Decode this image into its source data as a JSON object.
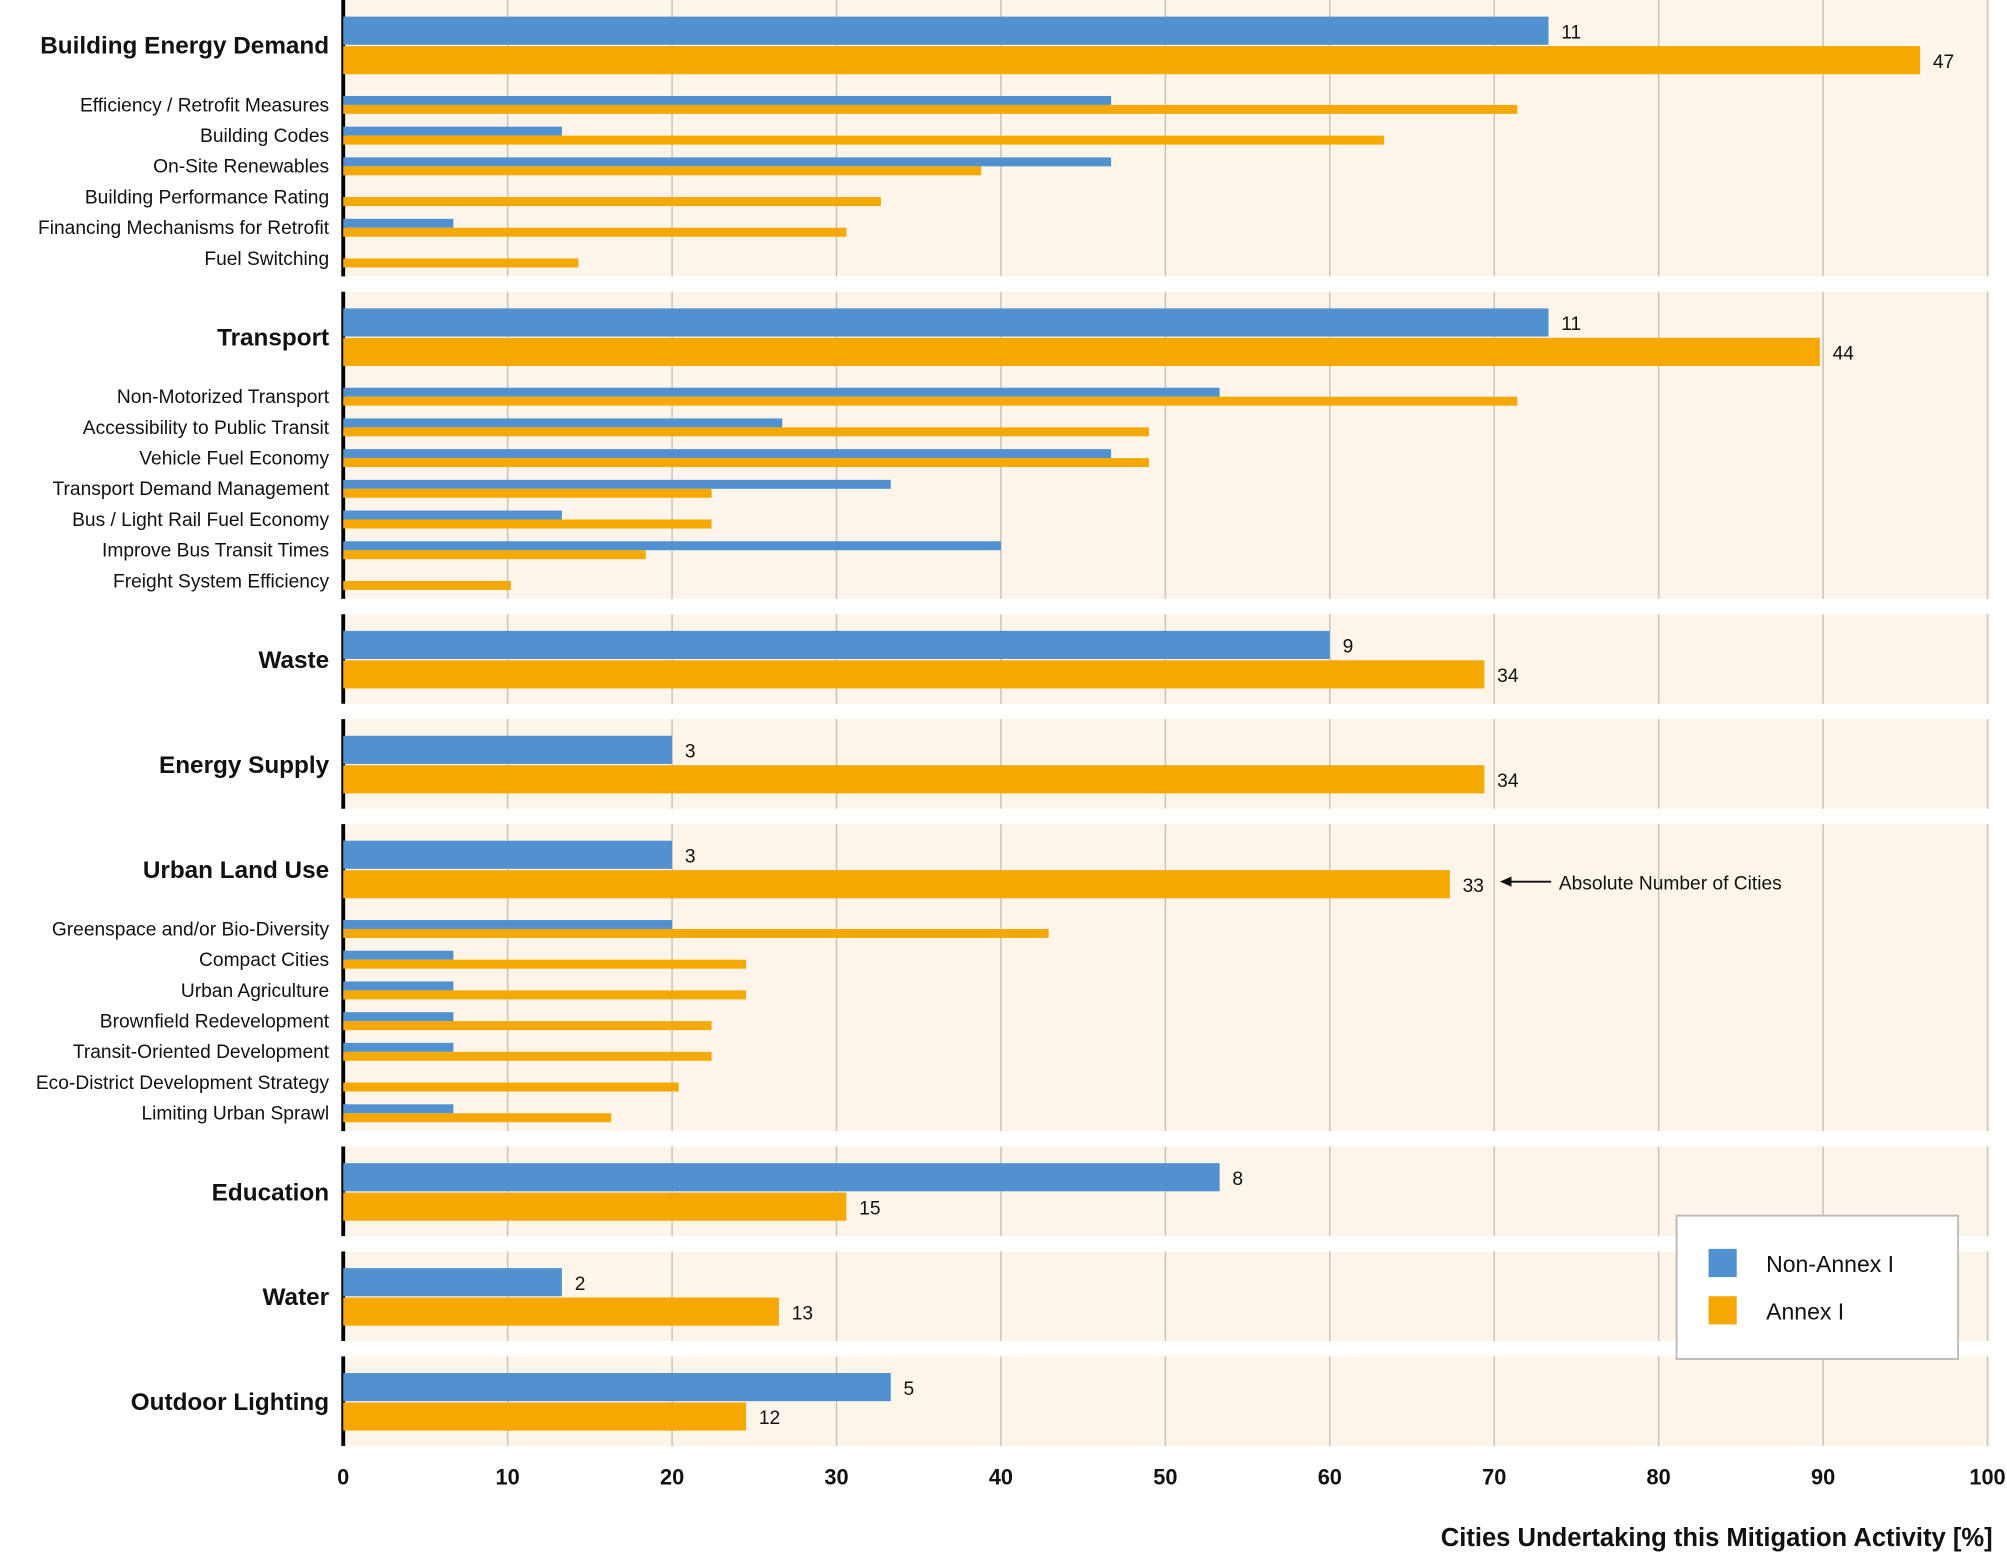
{
  "chart_data": {
    "type": "bar",
    "orientation": "horizontal",
    "xlabel": "Cities Undertaking this Mitigation Activity [%]",
    "xlim": [
      0,
      100
    ],
    "xticks": [
      0,
      10,
      20,
      30,
      40,
      50,
      60,
      70,
      80,
      90,
      100
    ],
    "grid": true,
    "legend": {
      "placement": "bottom-right",
      "entries": [
        {
          "name": "Non-Annex I",
          "color": "#5291cf"
        },
        {
          "name": "Annex I",
          "color": "#f5a800"
        }
      ]
    },
    "colors": {
      "non_annex": "#5291cf",
      "annex": "#f5a800",
      "panel_bg": "#fdf5ea"
    },
    "annotation": "Absolute Number of Cities",
    "groups": [
      {
        "name": "Building Energy Demand",
        "non_annex": 73.3,
        "annex": 95.9,
        "non_annex_count": "11",
        "annex_count": "47",
        "items": [
          {
            "name": "Efficiency / Retrofit Measures",
            "non_annex": 46.7,
            "annex": 71.4
          },
          {
            "name": "Building Codes",
            "non_annex": 13.3,
            "annex": 63.3
          },
          {
            "name": "On-Site Renewables",
            "non_annex": 46.7,
            "annex": 38.8
          },
          {
            "name": "Building Performance Rating",
            "non_annex": 0,
            "annex": 32.7
          },
          {
            "name": "Financing Mechanisms for Retrofit",
            "non_annex": 6.7,
            "annex": 30.6
          },
          {
            "name": "Fuel Switching",
            "non_annex": 0,
            "annex": 14.3
          }
        ]
      },
      {
        "name": "Transport",
        "non_annex": 73.3,
        "annex": 89.8,
        "non_annex_count": "11",
        "annex_count": "44",
        "items": [
          {
            "name": "Non-Motorized Transport",
            "non_annex": 53.3,
            "annex": 71.4
          },
          {
            "name": "Accessibility to Public Transit",
            "non_annex": 26.7,
            "annex": 49.0
          },
          {
            "name": "Vehicle Fuel Economy",
            "non_annex": 46.7,
            "annex": 49.0
          },
          {
            "name": "Transport Demand Management",
            "non_annex": 33.3,
            "annex": 22.4
          },
          {
            "name": "Bus / Light Rail Fuel Economy",
            "non_annex": 13.3,
            "annex": 22.4
          },
          {
            "name": "Improve Bus Transit Times",
            "non_annex": 40.0,
            "annex": 18.4
          },
          {
            "name": "Freight System Efficiency",
            "non_annex": 0,
            "annex": 10.2
          }
        ]
      },
      {
        "name": "Waste",
        "non_annex": 60.0,
        "annex": 69.4,
        "non_annex_count": "9",
        "annex_count": "34",
        "items": []
      },
      {
        "name": "Energy Supply",
        "non_annex": 20.0,
        "annex": 69.4,
        "non_annex_count": "3",
        "annex_count": "34",
        "items": []
      },
      {
        "name": "Urban Land Use",
        "non_annex": 20.0,
        "annex": 67.3,
        "non_annex_count": "3",
        "annex_count": "33",
        "items": [
          {
            "name": "Greenspace and/or Bio-Diversity",
            "non_annex": 20.0,
            "annex": 42.9
          },
          {
            "name": "Compact Cities",
            "non_annex": 6.7,
            "annex": 24.5
          },
          {
            "name": "Urban Agriculture",
            "non_annex": 6.7,
            "annex": 24.5
          },
          {
            "name": "Brownfield Redevelopment",
            "non_annex": 6.7,
            "annex": 22.4
          },
          {
            "name": "Transit-Oriented Development",
            "non_annex": 6.7,
            "annex": 22.4
          },
          {
            "name": "Eco-District Development Strategy",
            "non_annex": 0,
            "annex": 20.4
          },
          {
            "name": "Limiting Urban Sprawl",
            "non_annex": 6.7,
            "annex": 16.3
          }
        ]
      },
      {
        "name": "Education",
        "non_annex": 53.3,
        "annex": 30.6,
        "non_annex_count": "8",
        "annex_count": "15",
        "items": []
      },
      {
        "name": "Water",
        "non_annex": 13.3,
        "annex": 26.5,
        "non_annex_count": "2",
        "annex_count": "13",
        "items": []
      },
      {
        "name": "Outdoor Lighting",
        "non_annex": 33.3,
        "annex": 24.5,
        "non_annex_count": "5",
        "annex_count": "12",
        "items": []
      }
    ]
  }
}
